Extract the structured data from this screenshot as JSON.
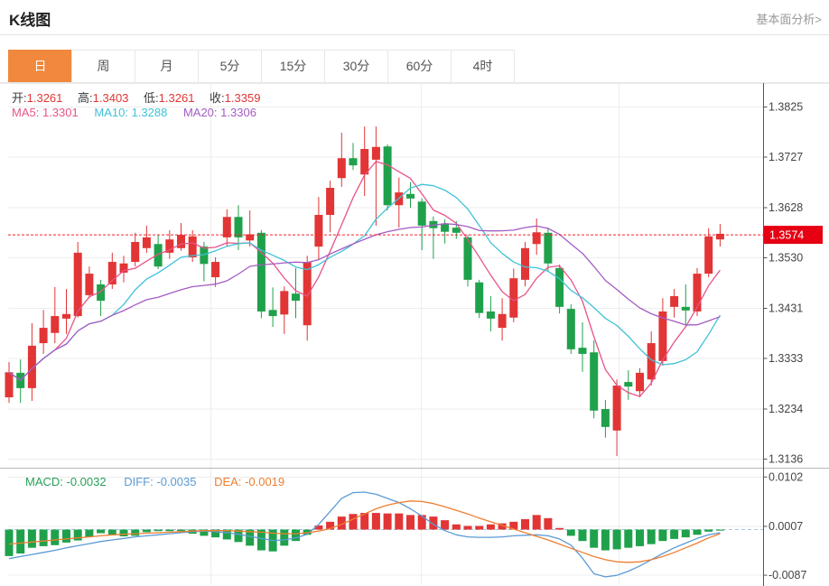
{
  "header": {
    "title": "K线图",
    "link_label": "基本面分析>"
  },
  "tabs": {
    "items": [
      "日",
      "周",
      "月",
      "5分",
      "15分",
      "30分",
      "60分",
      "4时"
    ],
    "active": "日"
  },
  "ohlc_legend": {
    "open_label": "开:",
    "open": "1.3261",
    "high_label": "高:",
    "high": "1.3403",
    "low_label": "低:",
    "low": "1.3261",
    "close_label": "收:",
    "close": "1.3359"
  },
  "ma_legend": {
    "ma5_label": "MA5:",
    "ma5": "1.3301",
    "ma10_label": "MA10:",
    "ma10": "1.3288",
    "ma20_label": "MA20:",
    "ma20": "1.3306"
  },
  "macd_legend": {
    "macd_label": "MACD:",
    "macd": "-0.0032",
    "diff_label": "DIFF:",
    "diff": "-0.0035",
    "dea_label": "DEA:",
    "dea": "-0.0019"
  },
  "colors": {
    "up": "#e23535",
    "down": "#1fa14b",
    "ma5": "#e8538a",
    "ma10": "#3fc2d8",
    "ma20": "#a45bc4",
    "diff_line": "#5b9bd5",
    "dea_line": "#ee7e30",
    "macd_value": "#26a05a",
    "price_line": "#f5222d",
    "price_tag_bg": "#e60012",
    "tab_active_bg": "#f0883e"
  },
  "chart_data": {
    "type": "candlestick",
    "title": "K线图",
    "legend_position": "top-left",
    "grid": true,
    "price_axis": {
      "ticks": [
        1.3825,
        1.3727,
        1.3628,
        1.353,
        1.3431,
        1.3333,
        1.3234,
        1.3136
      ],
      "max": 1.3871,
      "min": 1.312
    },
    "current_price": 1.3574,
    "ma_periods": [
      5,
      10,
      20
    ],
    "candles_ohlc": [
      [
        1.3256,
        1.3325,
        1.3245,
        1.3305
      ],
      [
        1.3304,
        1.333,
        1.3245,
        1.3274
      ],
      [
        1.3274,
        1.3401,
        1.3249,
        1.3357
      ],
      [
        1.3362,
        1.3427,
        1.3341,
        1.3392
      ],
      [
        1.3382,
        1.3472,
        1.3362,
        1.3415
      ],
      [
        1.341,
        1.3468,
        1.338,
        1.3419
      ],
      [
        1.3415,
        1.356,
        1.3412,
        1.3539
      ],
      [
        1.3456,
        1.3512,
        1.345,
        1.3498
      ],
      [
        1.3477,
        1.3486,
        1.3415,
        1.3445
      ],
      [
        1.3477,
        1.3539,
        1.3468,
        1.3521
      ],
      [
        1.35,
        1.3533,
        1.3481,
        1.3518
      ],
      [
        1.3521,
        1.3578,
        1.3512,
        1.356
      ],
      [
        1.3548,
        1.3592,
        1.3539,
        1.3569
      ],
      [
        1.3556,
        1.3574,
        1.3507,
        1.3512
      ],
      [
        1.3539,
        1.3583,
        1.3527,
        1.3565
      ],
      [
        1.3548,
        1.3597,
        1.3543,
        1.3574
      ],
      [
        1.353,
        1.3583,
        1.3521,
        1.3571
      ],
      [
        1.3551,
        1.356,
        1.3483,
        1.3517
      ],
      [
        1.3491,
        1.353,
        1.3472,
        1.3521
      ],
      [
        1.3569,
        1.3624,
        1.3551,
        1.3609
      ],
      [
        1.3609,
        1.3632,
        1.3544,
        1.3569
      ],
      [
        1.3563,
        1.3622,
        1.3551,
        1.3575
      ],
      [
        1.3578,
        1.3583,
        1.3411,
        1.3424
      ],
      [
        1.3427,
        1.3471,
        1.3394,
        1.3415
      ],
      [
        1.3418,
        1.3473,
        1.338,
        1.3464
      ],
      [
        1.3459,
        1.3509,
        1.3411,
        1.3445
      ],
      [
        1.3397,
        1.3533,
        1.3367,
        1.3521
      ],
      [
        1.3551,
        1.3648,
        1.3526,
        1.3613
      ],
      [
        1.3613,
        1.368,
        1.3579,
        1.3666
      ],
      [
        1.3685,
        1.3774,
        1.3668,
        1.3724
      ],
      [
        1.3724,
        1.3754,
        1.3701,
        1.371
      ],
      [
        1.3692,
        1.3786,
        1.365,
        1.3742
      ],
      [
        1.3721,
        1.3786,
        1.3592,
        1.3746
      ],
      [
        1.3747,
        1.3751,
        1.3622,
        1.3632
      ],
      [
        1.3632,
        1.3686,
        1.3588,
        1.3657
      ],
      [
        1.3654,
        1.3677,
        1.3627,
        1.3645
      ],
      [
        1.3639,
        1.3645,
        1.3544,
        1.3592
      ],
      [
        1.3601,
        1.361,
        1.3527,
        1.3587
      ],
      [
        1.3595,
        1.3604,
        1.3557,
        1.358
      ],
      [
        1.3588,
        1.3601,
        1.3566,
        1.3578
      ],
      [
        1.3569,
        1.3574,
        1.3473,
        1.3486
      ],
      [
        1.3481,
        1.3486,
        1.3411,
        1.3421
      ],
      [
        1.3424,
        1.3454,
        1.3385,
        1.341
      ],
      [
        1.3392,
        1.345,
        1.3367,
        1.3419
      ],
      [
        1.3412,
        1.3508,
        1.3403,
        1.3489
      ],
      [
        1.3486,
        1.356,
        1.3473,
        1.3548
      ],
      [
        1.3556,
        1.3606,
        1.3535,
        1.3579
      ],
      [
        1.3578,
        1.3588,
        1.3503,
        1.3518
      ],
      [
        1.3509,
        1.3516,
        1.342,
        1.3433
      ],
      [
        1.3429,
        1.3438,
        1.3341,
        1.335
      ],
      [
        1.3353,
        1.3403,
        1.3306,
        1.3341
      ],
      [
        1.3344,
        1.3367,
        1.3215,
        1.323
      ],
      [
        1.3233,
        1.3251,
        1.3177,
        1.3198
      ],
      [
        1.3191,
        1.3291,
        1.3141,
        1.3279
      ],
      [
        1.3286,
        1.3309,
        1.3251,
        1.3277
      ],
      [
        1.3268,
        1.3313,
        1.3256,
        1.3304
      ],
      [
        1.3291,
        1.3385,
        1.3279,
        1.3362
      ],
      [
        1.3327,
        1.345,
        1.3318,
        1.3424
      ],
      [
        1.3433,
        1.3468,
        1.3412,
        1.3454
      ],
      [
        1.3433,
        1.3477,
        1.3397,
        1.3426
      ],
      [
        1.3424,
        1.3509,
        1.3415,
        1.3498
      ],
      [
        1.3498,
        1.3587,
        1.3491,
        1.3571
      ],
      [
        1.3565,
        1.3595,
        1.3551,
        1.3576
      ]
    ],
    "macd": {
      "axis": {
        "ticks": [
          0.0102,
          0.0007,
          -0.0087
        ],
        "max": 0.01155,
        "min": -0.01068
      },
      "zero_line": 0,
      "histogram": [
        -0.0051,
        -0.0046,
        -0.0035,
        -0.0032,
        -0.003,
        -0.0025,
        -0.0021,
        -0.0014,
        -0.0007,
        -0.0011,
        -0.0013,
        -0.0012,
        -0.0005,
        -0.0003,
        -0.0003,
        -0.0003,
        -0.0008,
        -0.0012,
        -0.0015,
        -0.0019,
        -0.0024,
        -0.0031,
        -0.004,
        -0.0042,
        -0.0031,
        -0.0022,
        -0.001,
        0.0008,
        0.0015,
        0.0025,
        0.003,
        0.0032,
        0.0032,
        0.0031,
        0.0031,
        0.0028,
        0.0028,
        0.0025,
        0.0018,
        0.001,
        0.0007,
        0.0007,
        0.001,
        0.0012,
        0.0015,
        0.002,
        0.0028,
        0.0022,
        0.0003,
        -0.0012,
        -0.0022,
        -0.0035,
        -0.004,
        -0.0038,
        -0.0035,
        -0.0032,
        -0.0028,
        -0.0022,
        -0.0018,
        -0.0015,
        -0.001,
        -0.0004,
        -0.0002
      ],
      "diff": [
        -0.0056,
        -0.0052,
        -0.0048,
        -0.0044,
        -0.004,
        -0.0035,
        -0.0031,
        -0.0027,
        -0.0023,
        -0.002,
        -0.0017,
        -0.0014,
        -0.0012,
        -0.001,
        -0.0008,
        -0.0006,
        -0.0004,
        -0.0003,
        -0.0004,
        -0.0006,
        -0.0009,
        -0.0013,
        -0.0017,
        -0.0021,
        -0.002,
        -0.0016,
        -0.0009,
        0.001,
        0.0035,
        0.006,
        0.0071,
        0.0072,
        0.0068,
        0.006,
        0.0052,
        0.004,
        0.0026,
        0.001,
        -0.0002,
        -0.001,
        -0.0014,
        -0.0015,
        -0.0015,
        -0.0014,
        -0.0012,
        -0.0011,
        -0.001,
        -0.0012,
        -0.0018,
        -0.003,
        -0.0055,
        -0.0085,
        -0.0091,
        -0.0088,
        -0.008,
        -0.007,
        -0.0058,
        -0.0046,
        -0.0035,
        -0.0026,
        -0.0017,
        -0.001,
        -0.0006
      ],
      "dea": [
        -0.0028,
        -0.0026,
        -0.0024,
        -0.0022,
        -0.002,
        -0.0018,
        -0.0016,
        -0.0014,
        -0.0012,
        -0.001,
        -0.0009,
        -0.0008,
        -0.0007,
        -0.0006,
        -0.0005,
        -0.0004,
        -0.0003,
        -0.0002,
        -0.0002,
        -0.0002,
        -0.0003,
        -0.0004,
        -0.0005,
        -0.0007,
        -0.0008,
        -0.0008,
        -0.0006,
        -0.0003,
        0.0002,
        0.001,
        0.002,
        0.003,
        0.004,
        0.0047,
        0.0052,
        0.0055,
        0.0054,
        0.005,
        0.0044,
        0.0037,
        0.003,
        0.0022,
        0.0015,
        0.0008,
        0.0001,
        -0.0006,
        -0.0013,
        -0.002,
        -0.0028,
        -0.0036,
        -0.0044,
        -0.0052,
        -0.0058,
        -0.0062,
        -0.0063,
        -0.0062,
        -0.0058,
        -0.0052,
        -0.0044,
        -0.0035,
        -0.0026,
        -0.0016,
        -0.0008
      ]
    }
  }
}
